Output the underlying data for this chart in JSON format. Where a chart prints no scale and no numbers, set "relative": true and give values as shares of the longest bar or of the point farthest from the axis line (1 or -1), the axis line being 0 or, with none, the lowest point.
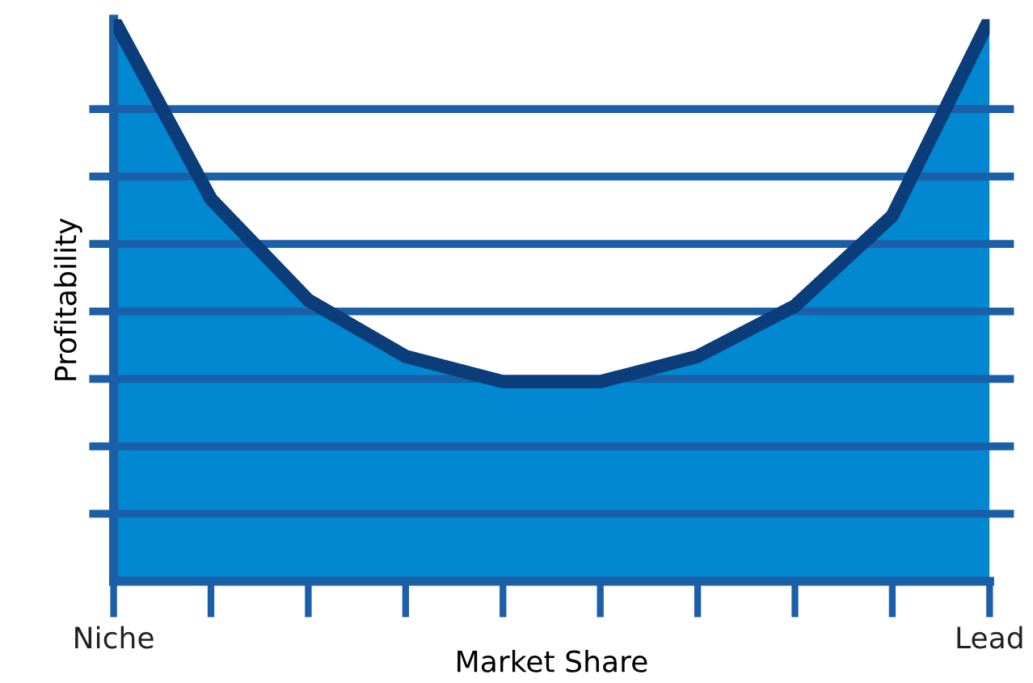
{
  "chart_data": {
    "type": "area",
    "relative": true,
    "xlabel": "Market Share",
    "ylabel": "Profitability",
    "categories": [
      "Niche",
      null,
      null,
      null,
      null,
      null,
      null,
      null,
      null,
      "Lead"
    ],
    "series": [
      {
        "color": "#0288d0",
        "values": [
          1.0,
          0.68,
          0.5,
          0.4,
          0.355,
          0.355,
          0.4,
          0.49,
          0.65,
          1.0
        ]
      }
    ],
    "ref_lines": [
      {
        "axis": "y",
        "value": 0.12,
        "color": "#1a5fa8"
      },
      {
        "axis": "y",
        "value": 0.24,
        "color": "#1a5fa8"
      },
      {
        "axis": "y",
        "value": 0.36,
        "color": "#1a5fa8"
      },
      {
        "axis": "y",
        "value": 0.48,
        "color": "#1a5fa8"
      },
      {
        "axis": "y",
        "value": 0.6,
        "color": "#1a5fa8"
      },
      {
        "axis": "y",
        "value": 0.72,
        "color": "#1a5fa8"
      },
      {
        "axis": "y",
        "value": 0.84,
        "color": "#1a5fa8"
      }
    ]
  }
}
